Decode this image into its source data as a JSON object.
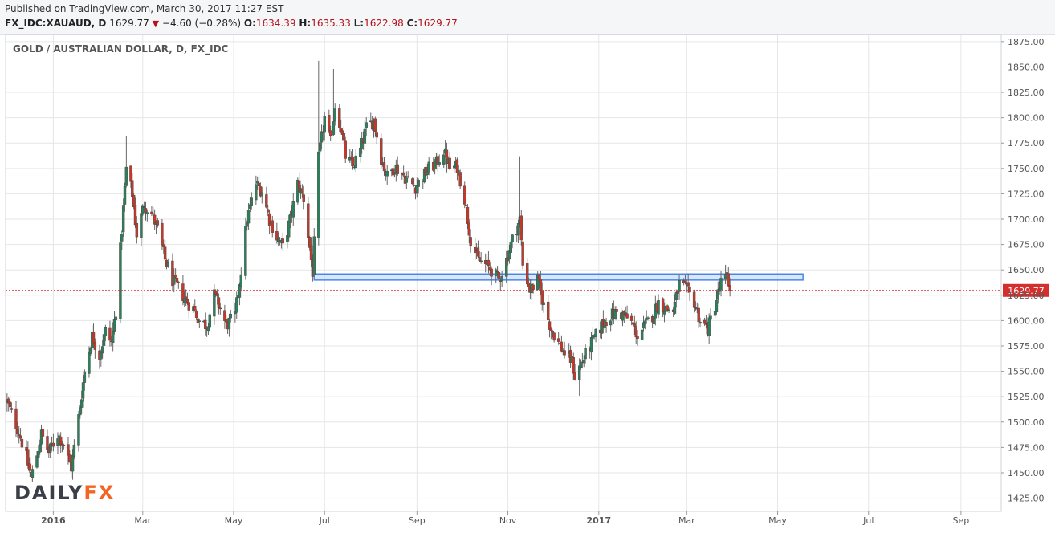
{
  "header": {
    "published": "Published on TradingView.com, March 30, 2017 11:27 EST",
    "symbol": "FX_IDC:XAUAUD, D",
    "last": "1629.77",
    "change": "−4.60 (−0.28%)",
    "o_label": "O:",
    "o": "1634.39",
    "h_label": "H:",
    "h": "1635.33",
    "l_label": "L:",
    "l": "1622.98",
    "c_label": "C:",
    "c": "1629.77"
  },
  "colors": {
    "up": "#26a69a",
    "down": "#ef5350",
    "up_fill": "#2e7d5b",
    "down_fill": "#c0392b",
    "price_line": "#d32f2f",
    "zone_fill": "#bcd3f5",
    "zone_stroke": "#4a86e8",
    "grid": "#e6e6e6",
    "logo_dark": "#3a3f47",
    "logo_accent": "#f26522"
  },
  "chart_data": {
    "type": "candlestick",
    "title": "GOLD / AUSTRALIAN DOLLAR, D, FX_IDC",
    "price_label": "1629.77",
    "ylim": [
      1412,
      1882
    ],
    "y_ticks": [
      1425,
      1450,
      1475,
      1500,
      1525,
      1550,
      1575,
      1600,
      1625,
      1650,
      1675,
      1700,
      1725,
      1750,
      1775,
      1800,
      1825,
      1850,
      1875
    ],
    "y_tick_labels": [
      "1425.00",
      "1450.00",
      "1475.00",
      "1500.00",
      "1525.00",
      "1550.00",
      "1575.00",
      "1600.00",
      "1625.00",
      "1650.00",
      "1675.00",
      "1700.00",
      "1725.00",
      "1750.00",
      "1775.00",
      "1800.00",
      "1825.00",
      "1850.00",
      "1875.00"
    ],
    "x_range": [
      "2015-11-30",
      "2017-09-28"
    ],
    "x_ticks": [
      {
        "date": "2016-01-01",
        "label": "2016",
        "bold": true
      },
      {
        "date": "2016-03-01",
        "label": "Mar",
        "bold": false
      },
      {
        "date": "2016-05-01",
        "label": "May",
        "bold": false
      },
      {
        "date": "2016-07-01",
        "label": "Jul",
        "bold": false
      },
      {
        "date": "2016-09-01",
        "label": "Sep",
        "bold": false
      },
      {
        "date": "2016-11-01",
        "label": "Nov",
        "bold": false
      },
      {
        "date": "2017-01-01",
        "label": "2017",
        "bold": true
      },
      {
        "date": "2017-03-01",
        "label": "Mar",
        "bold": false
      },
      {
        "date": "2017-05-01",
        "label": "May",
        "bold": false
      },
      {
        "date": "2017-07-01",
        "label": "Jul",
        "bold": false
      },
      {
        "date": "2017-09-01",
        "label": "Sep",
        "bold": false
      }
    ],
    "close_path": [
      [
        "2015-12-01",
        1520
      ],
      [
        "2015-12-04",
        1508
      ],
      [
        "2015-12-09",
        1490
      ],
      [
        "2015-12-14",
        1465
      ],
      [
        "2015-12-17",
        1445
      ],
      [
        "2015-12-21",
        1468
      ],
      [
        "2015-12-24",
        1488
      ],
      [
        "2015-12-29",
        1470
      ],
      [
        "2016-01-04",
        1488
      ],
      [
        "2016-01-08",
        1478
      ],
      [
        "2016-01-13",
        1455
      ],
      [
        "2016-01-18",
        1505
      ],
      [
        "2016-01-22",
        1550
      ],
      [
        "2016-01-27",
        1585
      ],
      [
        "2016-02-01",
        1565
      ],
      [
        "2016-02-05",
        1590
      ],
      [
        "2016-02-09",
        1578
      ],
      [
        "2016-02-12",
        1610
      ],
      [
        "2016-02-16",
        1690
      ],
      [
        "2016-02-19",
        1750
      ],
      [
        "2016-02-23",
        1725
      ],
      [
        "2016-02-26",
        1685
      ],
      [
        "2016-03-02",
        1715
      ],
      [
        "2016-03-07",
        1705
      ],
      [
        "2016-03-11",
        1690
      ],
      [
        "2016-03-16",
        1660
      ],
      [
        "2016-03-21",
        1640
      ],
      [
        "2016-03-25",
        1632
      ],
      [
        "2016-03-30",
        1620
      ],
      [
        "2016-04-04",
        1612
      ],
      [
        "2016-04-08",
        1600
      ],
      [
        "2016-04-13",
        1595
      ],
      [
        "2016-04-18",
        1625
      ],
      [
        "2016-04-22",
        1612
      ],
      [
        "2016-04-26",
        1595
      ],
      [
        "2016-05-02",
        1605
      ],
      [
        "2016-05-06",
        1650
      ],
      [
        "2016-05-10",
        1700
      ],
      [
        "2016-05-16",
        1735
      ],
      [
        "2016-05-20",
        1728
      ],
      [
        "2016-05-25",
        1700
      ],
      [
        "2016-05-30",
        1682
      ],
      [
        "2016-06-03",
        1672
      ],
      [
        "2016-06-08",
        1700
      ],
      [
        "2016-06-13",
        1735
      ],
      [
        "2016-06-17",
        1720
      ],
      [
        "2016-06-23",
        1648
      ],
      [
        "2016-06-27",
        1760
      ],
      [
        "2016-07-01",
        1800
      ],
      [
        "2016-07-05",
        1775
      ],
      [
        "2016-07-08",
        1812
      ],
      [
        "2016-07-12",
        1790
      ],
      [
        "2016-07-15",
        1762
      ],
      [
        "2016-07-20",
        1752
      ],
      [
        "2016-07-25",
        1768
      ],
      [
        "2016-07-29",
        1790
      ],
      [
        "2016-08-03",
        1797
      ],
      [
        "2016-08-08",
        1760
      ],
      [
        "2016-08-12",
        1742
      ],
      [
        "2016-08-17",
        1752
      ],
      [
        "2016-08-22",
        1745
      ],
      [
        "2016-08-26",
        1738
      ],
      [
        "2016-08-31",
        1732
      ],
      [
        "2016-09-05",
        1742
      ],
      [
        "2016-09-09",
        1750
      ],
      [
        "2016-09-14",
        1755
      ],
      [
        "2016-09-19",
        1768
      ],
      [
        "2016-09-23",
        1750
      ],
      [
        "2016-09-28",
        1752
      ],
      [
        "2016-10-03",
        1720
      ],
      [
        "2016-10-07",
        1680
      ],
      [
        "2016-10-12",
        1660
      ],
      [
        "2016-10-17",
        1655
      ],
      [
        "2016-10-21",
        1650
      ],
      [
        "2016-10-26",
        1640
      ],
      [
        "2016-10-31",
        1660
      ],
      [
        "2016-11-04",
        1680
      ],
      [
        "2016-11-09",
        1700
      ],
      [
        "2016-11-11",
        1655
      ],
      [
        "2016-11-16",
        1630
      ],
      [
        "2016-11-21",
        1640
      ],
      [
        "2016-11-25",
        1615
      ],
      [
        "2016-11-30",
        1592
      ],
      [
        "2016-12-05",
        1578
      ],
      [
        "2016-12-09",
        1568
      ],
      [
        "2016-12-14",
        1560
      ],
      [
        "2016-12-16",
        1545
      ],
      [
        "2016-12-21",
        1560
      ],
      [
        "2016-12-26",
        1575
      ],
      [
        "2016-12-30",
        1585
      ],
      [
        "2017-01-04",
        1598
      ],
      [
        "2017-01-09",
        1605
      ],
      [
        "2017-01-13",
        1608
      ],
      [
        "2017-01-18",
        1605
      ],
      [
        "2017-01-23",
        1598
      ],
      [
        "2017-01-27",
        1585
      ],
      [
        "2017-02-01",
        1595
      ],
      [
        "2017-02-06",
        1605
      ],
      [
        "2017-02-10",
        1618
      ],
      [
        "2017-02-15",
        1612
      ],
      [
        "2017-02-20",
        1610
      ],
      [
        "2017-02-24",
        1636
      ],
      [
        "2017-03-01",
        1630
      ],
      [
        "2017-03-06",
        1618
      ],
      [
        "2017-03-10",
        1600
      ],
      [
        "2017-03-15",
        1592
      ],
      [
        "2017-03-20",
        1615
      ],
      [
        "2017-03-24",
        1638
      ],
      [
        "2017-03-28",
        1642
      ],
      [
        "2017-03-30",
        1629.77
      ]
    ],
    "spikes": [
      {
        "date": "2016-02-19",
        "high": 1782
      },
      {
        "date": "2016-06-27",
        "high": 1856
      },
      {
        "date": "2016-07-07",
        "high": 1848
      },
      {
        "date": "2016-11-09",
        "high": 1762
      },
      {
        "date": "2017-03-27",
        "high": 1655
      },
      {
        "date": "2016-12-19",
        "low": 1526
      },
      {
        "date": "2015-12-17",
        "low": 1440
      }
    ],
    "zone": {
      "start": "2016-06-24",
      "end": "2017-05-18",
      "low": 1640,
      "high": 1646
    },
    "last_price": 1629.77
  }
}
